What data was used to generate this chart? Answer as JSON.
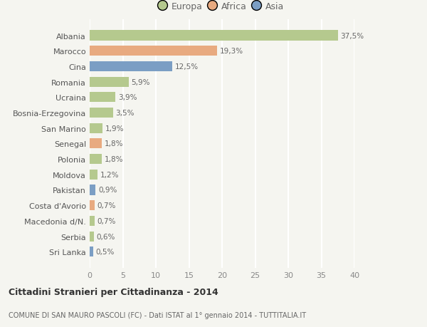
{
  "categories": [
    "Sri Lanka",
    "Serbia",
    "Macedonia d/N.",
    "Costa d'Avorio",
    "Pakistan",
    "Moldova",
    "Polonia",
    "Senegal",
    "San Marino",
    "Bosnia-Erzegovina",
    "Ucraina",
    "Romania",
    "Cina",
    "Marocco",
    "Albania"
  ],
  "values": [
    0.5,
    0.6,
    0.7,
    0.7,
    0.9,
    1.2,
    1.8,
    1.8,
    1.9,
    3.5,
    3.9,
    5.9,
    12.5,
    19.3,
    37.5
  ],
  "labels": [
    "0,5%",
    "0,6%",
    "0,7%",
    "0,7%",
    "0,9%",
    "1,2%",
    "1,8%",
    "1,8%",
    "1,9%",
    "3,5%",
    "3,9%",
    "5,9%",
    "12,5%",
    "19,3%",
    "37,5%"
  ],
  "continents": [
    "Asia",
    "Europa",
    "Europa",
    "Africa",
    "Asia",
    "Europa",
    "Europa",
    "Africa",
    "Europa",
    "Europa",
    "Europa",
    "Europa",
    "Asia",
    "Africa",
    "Europa"
  ],
  "colors": {
    "Europa": "#b5c98e",
    "Africa": "#e8aa80",
    "Asia": "#7b9ec4"
  },
  "background_color": "#f5f5f0",
  "grid_color": "#ffffff",
  "title": "Cittadini Stranieri per Cittadinanza - 2014",
  "subtitle": "COMUNE DI SAN MAURO PASCOLI (FC) - Dati ISTAT al 1° gennaio 2014 - TUTTITALIA.IT",
  "xlim": [
    0,
    40
  ],
  "xticks": [
    0,
    5,
    10,
    15,
    20,
    25,
    30,
    35,
    40
  ],
  "legend_labels": [
    "Europa",
    "Africa",
    "Asia"
  ],
  "legend_colors": [
    "#b5c98e",
    "#e8aa80",
    "#7b9ec4"
  ]
}
